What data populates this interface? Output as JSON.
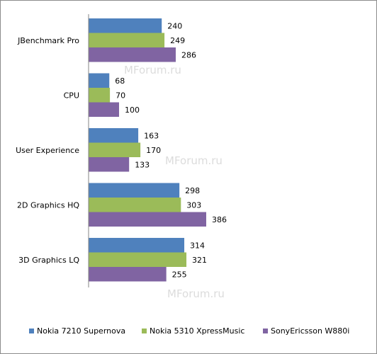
{
  "chart_data": {
    "type": "bar",
    "orientation": "horizontal",
    "categories": [
      "JBenchmark Pro",
      "CPU",
      "User Experience",
      "2D Graphics HQ",
      "3D Graphics LQ"
    ],
    "series": [
      {
        "name": "Nokia 7210 Supernova",
        "color": "#4f81bd",
        "values": [
          240,
          68,
          163,
          298,
          314
        ]
      },
      {
        "name": "Nokia 5310 XpressMusic",
        "color": "#9bbb59",
        "values": [
          249,
          70,
          170,
          303,
          321
        ]
      },
      {
        "name": "SonyEricsson W880i",
        "color": "#8064a2",
        "values": [
          286,
          100,
          133,
          386,
          255
        ]
      }
    ],
    "xlim": [
      0,
      450
    ],
    "grid": false,
    "legend_position": "bottom",
    "watermark": "MForum.ru"
  }
}
